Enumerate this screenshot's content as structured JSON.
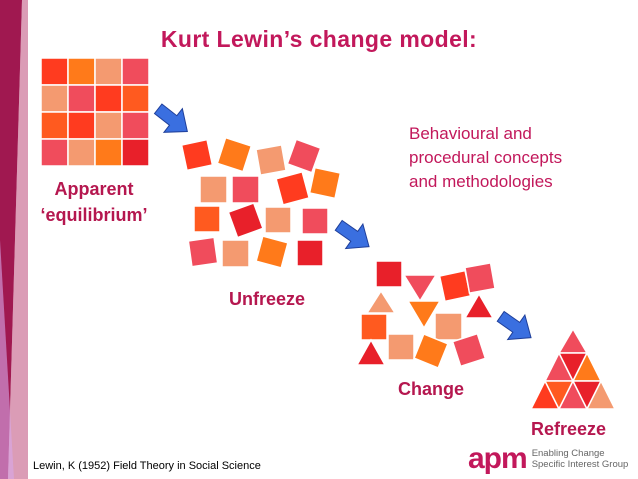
{
  "title": "Kurt Lewin’s change model:",
  "labels": {
    "equilibrium_line1": "Apparent",
    "equilibrium_line2": "‘equilibrium’",
    "unfreeze": "Unfreeze",
    "change": "Change",
    "refreeze": "Refreeze"
  },
  "note": {
    "line1": "Behavioural and",
    "line2": "procedural concepts",
    "line3": "and methodologies"
  },
  "citation": "Lewin, K (1952)  Field Theory in Social Science",
  "logo": {
    "mark": "apm",
    "tagline_line1": "Enabling Change",
    "tagline_line2": "Specific Interest Group"
  },
  "colors": {
    "title": "#c2185b",
    "labels": "#b5174f",
    "arrow": "#3a6fe0",
    "sidebar": "#a01850",
    "shape_palette": [
      "#ff5a1f",
      "#ff3b1f",
      "#f04c5c",
      "#f49a70",
      "#ff7a1a",
      "#e8202a"
    ]
  }
}
